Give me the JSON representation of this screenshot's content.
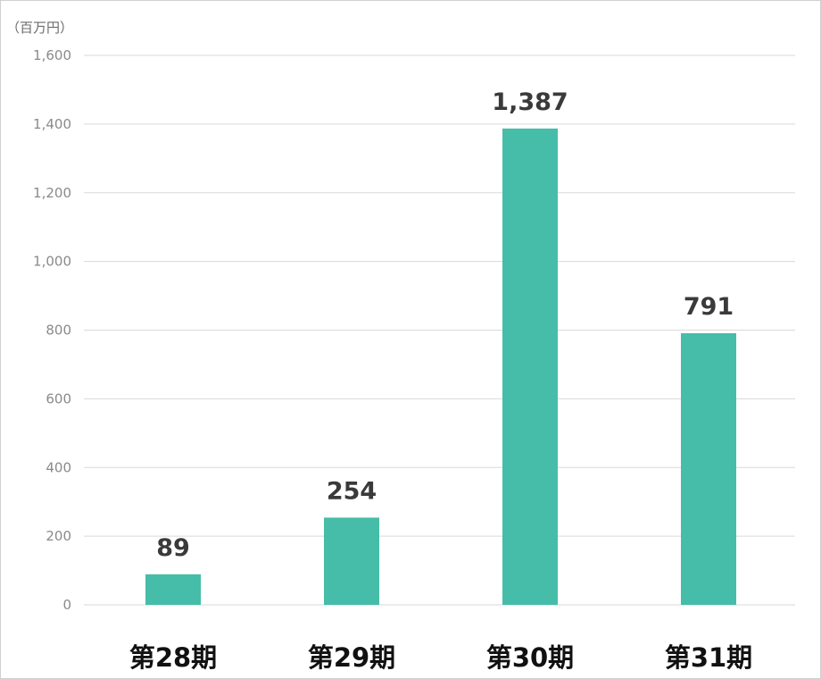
{
  "chart_data": {
    "type": "bar",
    "unit_label": "（百万円）",
    "categories": [
      "第28期",
      "第29期",
      "第30期",
      "第31期"
    ],
    "values": [
      89,
      254,
      1387,
      791
    ],
    "data_labels": [
      "89",
      "254",
      "1,387",
      "791"
    ],
    "ylim": [
      0,
      1600
    ],
    "yticks": [
      0,
      200,
      400,
      600,
      800,
      1000,
      1200,
      1400,
      1600
    ],
    "ytick_labels": [
      "0",
      "200",
      "400",
      "600",
      "800",
      "1,000",
      "1,200",
      "1,400",
      "1,600"
    ],
    "bar_color": "#45bda8",
    "grid": true,
    "legend": "none"
  }
}
